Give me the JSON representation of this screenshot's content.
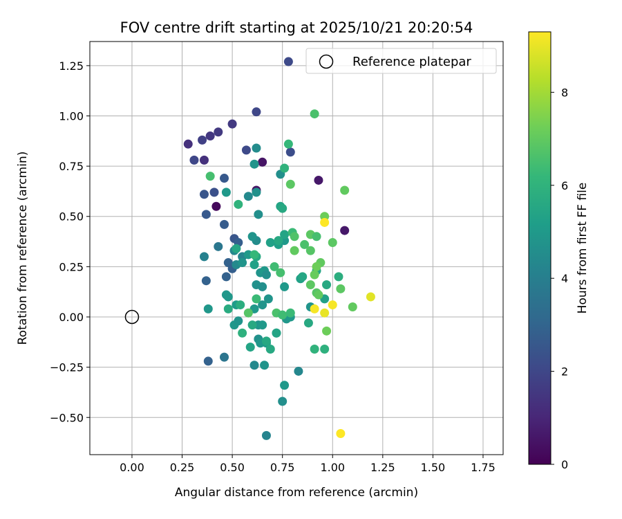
{
  "chart_data": {
    "type": "scatter",
    "title": "FOV centre drift starting at 2025/10/21 20:20:54",
    "xlabel": "Angular distance from reference (arcmin)",
    "ylabel": "Rotation from reference (arcmin)",
    "xlim": [
      -0.21,
      1.85
    ],
    "ylim": [
      -0.685,
      1.37
    ],
    "xticks": [
      0.0,
      0.25,
      0.5,
      0.75,
      1.0,
      1.25,
      1.5,
      1.75
    ],
    "xtick_labels": [
      "0.00",
      "0.25",
      "0.50",
      "0.75",
      "1.00",
      "1.25",
      "1.50",
      "1.75"
    ],
    "yticks": [
      -0.5,
      -0.25,
      0.0,
      0.25,
      0.5,
      0.75,
      1.0,
      1.25
    ],
    "ytick_labels": [
      "−0.50",
      "−0.25",
      "0.00",
      "0.25",
      "0.50",
      "0.75",
      "1.00",
      "1.25"
    ],
    "grid": true,
    "legend": {
      "placement": "top-right",
      "entries": [
        "Reference platepar"
      ]
    },
    "reference_point": {
      "x": 0.0,
      "y": 0.0
    },
    "colorbar": {
      "label": "Hours from first FF file",
      "colormap": "viridis",
      "range": [
        0,
        9.3
      ],
      "ticks": [
        0,
        2,
        4,
        6,
        8
      ],
      "tick_labels": [
        "0",
        "2",
        "4",
        "6",
        "8"
      ]
    },
    "colormap_stops": [
      "#440154",
      "#482878",
      "#3e4989",
      "#31688e",
      "#26828e",
      "#1f9e89",
      "#35b779",
      "#6ece58",
      "#b5de2b",
      "#fde725"
    ],
    "points": [
      {
        "x": 0.42,
        "y": 0.55,
        "c": 0.2
      },
      {
        "x": 0.62,
        "y": 0.63,
        "c": 0.5
      },
      {
        "x": 0.65,
        "y": 0.77,
        "c": 0.5
      },
      {
        "x": 0.93,
        "y": 0.68,
        "c": 0.6
      },
      {
        "x": 1.06,
        "y": 0.43,
        "c": 0.6
      },
      {
        "x": 0.28,
        "y": 0.86,
        "c": 1.3
      },
      {
        "x": 0.36,
        "y": 0.78,
        "c": 1.3
      },
      {
        "x": 0.39,
        "y": 0.9,
        "c": 1.5
      },
      {
        "x": 0.43,
        "y": 0.92,
        "c": 1.6
      },
      {
        "x": 0.5,
        "y": 0.96,
        "c": 1.6
      },
      {
        "x": 0.35,
        "y": 0.88,
        "c": 1.8
      },
      {
        "x": 0.31,
        "y": 0.78,
        "c": 2.0
      },
      {
        "x": 0.62,
        "y": 1.02,
        "c": 2.0
      },
      {
        "x": 0.78,
        "y": 1.27,
        "c": 2.1
      },
      {
        "x": 0.57,
        "y": 0.83,
        "c": 2.1
      },
      {
        "x": 0.79,
        "y": 0.82,
        "c": 2.2
      },
      {
        "x": 0.41,
        "y": 0.62,
        "c": 2.3
      },
      {
        "x": 0.36,
        "y": 0.61,
        "c": 2.5
      },
      {
        "x": 0.37,
        "y": 0.51,
        "c": 2.6
      },
      {
        "x": 0.46,
        "y": 0.69,
        "c": 2.6
      },
      {
        "x": 0.46,
        "y": 0.46,
        "c": 2.7
      },
      {
        "x": 0.51,
        "y": 0.39,
        "c": 2.5
      },
      {
        "x": 0.53,
        "y": 0.37,
        "c": 2.8
      },
      {
        "x": 0.48,
        "y": 0.27,
        "c": 2.9
      },
      {
        "x": 0.5,
        "y": 0.24,
        "c": 2.8
      },
      {
        "x": 0.47,
        "y": 0.2,
        "c": 2.9
      },
      {
        "x": 0.37,
        "y": 0.18,
        "c": 2.9
      },
      {
        "x": 0.38,
        "y": -0.22,
        "c": 2.9
      },
      {
        "x": 0.46,
        "y": -0.2,
        "c": 3.6
      },
      {
        "x": 0.43,
        "y": 0.35,
        "c": 3.7
      },
      {
        "x": 0.36,
        "y": 0.3,
        "c": 4.1
      },
      {
        "x": 0.55,
        "y": 0.3,
        "c": 4.2
      },
      {
        "x": 0.51,
        "y": 0.33,
        "c": 4.3
      },
      {
        "x": 0.62,
        "y": 0.38,
        "c": 4.5
      },
      {
        "x": 0.67,
        "y": -0.59,
        "c": 4.2
      },
      {
        "x": 0.83,
        "y": -0.27,
        "c": 4.3
      },
      {
        "x": 0.75,
        "y": -0.42,
        "c": 4.6
      },
      {
        "x": 0.61,
        "y": -0.24,
        "c": 4.4
      },
      {
        "x": 0.66,
        "y": -0.24,
        "c": 4.8
      },
      {
        "x": 0.76,
        "y": -0.34,
        "c": 5.0
      },
      {
        "x": 0.62,
        "y": 0.84,
        "c": 4.5
      },
      {
        "x": 0.58,
        "y": 0.6,
        "c": 4.4
      },
      {
        "x": 0.63,
        "y": 0.51,
        "c": 4.6
      },
      {
        "x": 0.74,
        "y": 0.71,
        "c": 4.6
      },
      {
        "x": 0.62,
        "y": 0.62,
        "c": 4.7
      },
      {
        "x": 0.47,
        "y": 0.62,
        "c": 5.0
      },
      {
        "x": 0.61,
        "y": 0.76,
        "c": 4.8
      },
      {
        "x": 0.52,
        "y": 0.26,
        "c": 4.4
      },
      {
        "x": 0.58,
        "y": 0.31,
        "c": 5.0
      },
      {
        "x": 0.55,
        "y": 0.27,
        "c": 4.8
      },
      {
        "x": 0.6,
        "y": 0.4,
        "c": 4.8
      },
      {
        "x": 0.62,
        "y": 0.16,
        "c": 4.7
      },
      {
        "x": 0.64,
        "y": 0.22,
        "c": 4.8
      },
      {
        "x": 0.66,
        "y": 0.23,
        "c": 5.0
      },
      {
        "x": 0.67,
        "y": 0.21,
        "c": 4.6
      },
      {
        "x": 0.65,
        "y": 0.15,
        "c": 4.6
      },
      {
        "x": 0.68,
        "y": 0.09,
        "c": 4.8
      },
      {
        "x": 0.65,
        "y": 0.06,
        "c": 4.8
      },
      {
        "x": 0.61,
        "y": 0.04,
        "c": 5.0
      },
      {
        "x": 0.47,
        "y": 0.11,
        "c": 4.9
      },
      {
        "x": 0.48,
        "y": 0.1,
        "c": 4.9
      },
      {
        "x": 0.38,
        "y": 0.04,
        "c": 4.9
      },
      {
        "x": 0.51,
        "y": -0.04,
        "c": 4.9
      },
      {
        "x": 0.53,
        "y": -0.02,
        "c": 4.8
      },
      {
        "x": 0.63,
        "y": -0.04,
        "c": 4.8
      },
      {
        "x": 0.65,
        "y": -0.04,
        "c": 5.0
      },
      {
        "x": 0.63,
        "y": -0.11,
        "c": 4.7
      },
      {
        "x": 0.64,
        "y": -0.13,
        "c": 4.9
      },
      {
        "x": 0.67,
        "y": -0.13,
        "c": 5.1
      },
      {
        "x": 0.72,
        "y": -0.08,
        "c": 5.0
      },
      {
        "x": 0.77,
        "y": -0.01,
        "c": 4.9
      },
      {
        "x": 0.79,
        "y": 0.0,
        "c": 5.0
      },
      {
        "x": 0.89,
        "y": 0.05,
        "c": 4.8
      },
      {
        "x": 0.73,
        "y": 0.36,
        "c": 5.2
      },
      {
        "x": 0.76,
        "y": 0.38,
        "c": 5.0
      },
      {
        "x": 0.76,
        "y": 0.41,
        "c": 5.4
      },
      {
        "x": 0.74,
        "y": 0.55,
        "c": 5.4
      },
      {
        "x": 0.75,
        "y": 0.54,
        "c": 5.6
      },
      {
        "x": 0.69,
        "y": 0.37,
        "c": 5.3
      },
      {
        "x": 0.73,
        "y": 0.38,
        "c": 5.6
      },
      {
        "x": 0.76,
        "y": 0.15,
        "c": 5.0
      },
      {
        "x": 0.84,
        "y": 0.19,
        "c": 5.3
      },
      {
        "x": 0.85,
        "y": 0.2,
        "c": 5.5
      },
      {
        "x": 0.52,
        "y": 0.06,
        "c": 5.1
      },
      {
        "x": 0.54,
        "y": 0.06,
        "c": 5.8
      },
      {
        "x": 0.48,
        "y": 0.04,
        "c": 5.7
      },
      {
        "x": 0.6,
        "y": -0.04,
        "c": 5.6
      },
      {
        "x": 0.55,
        "y": -0.08,
        "c": 5.9
      },
      {
        "x": 0.59,
        "y": -0.15,
        "c": 5.4
      },
      {
        "x": 0.67,
        "y": -0.12,
        "c": 5.6
      },
      {
        "x": 0.69,
        "y": -0.16,
        "c": 5.6
      },
      {
        "x": 0.72,
        "y": -0.08,
        "c": 5.4
      },
      {
        "x": 0.88,
        "y": -0.03,
        "c": 5.6
      },
      {
        "x": 0.96,
        "y": -0.16,
        "c": 5.9
      },
      {
        "x": 0.91,
        "y": -0.16,
        "c": 6.0
      },
      {
        "x": 0.96,
        "y": 0.09,
        "c": 5.3
      },
      {
        "x": 0.92,
        "y": 0.23,
        "c": 5.5
      },
      {
        "x": 0.97,
        "y": 0.16,
        "c": 5.6
      },
      {
        "x": 1.03,
        "y": 0.2,
        "c": 5.8
      },
      {
        "x": 0.62,
        "y": 0.3,
        "c": 5.6
      },
      {
        "x": 0.52,
        "y": 0.34,
        "c": 5.5
      },
      {
        "x": 0.61,
        "y": 0.26,
        "c": 5.3
      },
      {
        "x": 0.53,
        "y": 0.56,
        "c": 6.0
      },
      {
        "x": 0.76,
        "y": 0.74,
        "c": 6.0
      },
      {
        "x": 0.78,
        "y": 0.86,
        "c": 6.2
      },
      {
        "x": 0.91,
        "y": 1.01,
        "c": 6.6
      },
      {
        "x": 0.39,
        "y": 0.7,
        "c": 6.5
      },
      {
        "x": 0.61,
        "y": 0.31,
        "c": 6.2
      },
      {
        "x": 0.71,
        "y": 0.25,
        "c": 6.4
      },
      {
        "x": 0.62,
        "y": 0.09,
        "c": 6.3
      },
      {
        "x": 0.74,
        "y": 0.22,
        "c": 6.5
      },
      {
        "x": 0.72,
        "y": 0.02,
        "c": 6.6
      },
      {
        "x": 0.75,
        "y": 0.01,
        "c": 6.4
      },
      {
        "x": 0.79,
        "y": 0.02,
        "c": 6.3
      },
      {
        "x": 0.58,
        "y": 0.02,
        "c": 6.8
      },
      {
        "x": 0.8,
        "y": 0.42,
        "c": 6.3
      },
      {
        "x": 0.81,
        "y": 0.4,
        "c": 6.7
      },
      {
        "x": 0.79,
        "y": 0.66,
        "c": 6.9
      },
      {
        "x": 0.86,
        "y": 0.36,
        "c": 6.6
      },
      {
        "x": 0.89,
        "y": 0.41,
        "c": 6.9
      },
      {
        "x": 0.92,
        "y": 0.4,
        "c": 6.5
      },
      {
        "x": 0.89,
        "y": 0.33,
        "c": 6.8
      },
      {
        "x": 0.81,
        "y": 0.33,
        "c": 7.0
      },
      {
        "x": 0.94,
        "y": 0.27,
        "c": 7.0
      },
      {
        "x": 0.92,
        "y": 0.25,
        "c": 7.2
      },
      {
        "x": 0.91,
        "y": 0.21,
        "c": 7.1
      },
      {
        "x": 0.89,
        "y": 0.16,
        "c": 6.9
      },
      {
        "x": 0.92,
        "y": 0.12,
        "c": 6.8
      },
      {
        "x": 0.93,
        "y": 0.11,
        "c": 7.0
      },
      {
        "x": 1.04,
        "y": 0.14,
        "c": 6.9
      },
      {
        "x": 1.0,
        "y": 0.37,
        "c": 6.9
      },
      {
        "x": 1.06,
        "y": 0.63,
        "c": 7.0
      },
      {
        "x": 0.96,
        "y": 0.5,
        "c": 7.2
      },
      {
        "x": 1.1,
        "y": 0.05,
        "c": 7.0
      },
      {
        "x": 0.97,
        "y": -0.07,
        "c": 7.2
      },
      {
        "x": 1.0,
        "y": 0.06,
        "c": 9.2
      },
      {
        "x": 0.91,
        "y": 0.04,
        "c": 9.2
      },
      {
        "x": 0.96,
        "y": 0.02,
        "c": 9.0
      },
      {
        "x": 0.96,
        "y": 0.47,
        "c": 9.3
      },
      {
        "x": 1.19,
        "y": 0.1,
        "c": 8.9
      },
      {
        "x": 1.04,
        "y": -0.58,
        "c": 9.3
      }
    ]
  }
}
